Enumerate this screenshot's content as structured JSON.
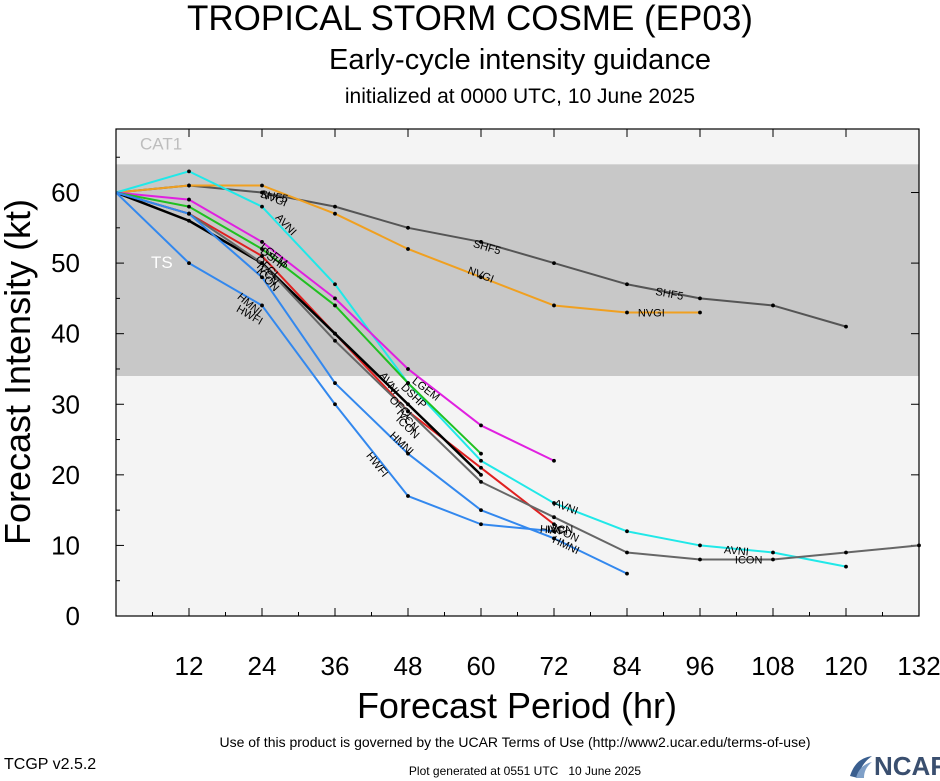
{
  "chart_data": {
    "type": "line",
    "title": "TROPICAL STORM COSME (EP03)",
    "subtitle": "Early-cycle intensity guidance",
    "init_text": "initialized at 0000 UTC, 10 June 2025",
    "xlabel": "Forecast Period (hr)",
    "ylabel": "Forecast Intensity (kt)",
    "xlim": [
      0,
      132
    ],
    "ylim": [
      0,
      69
    ],
    "xticks": [
      12,
      24,
      36,
      48,
      60,
      72,
      84,
      96,
      108,
      120,
      132
    ],
    "yticks": [
      0,
      10,
      20,
      30,
      40,
      50,
      60
    ],
    "bands": [
      {
        "label": "CAT1",
        "from": 64,
        "to": 69,
        "color": "#f4f4f4"
      },
      {
        "label": "TS",
        "from": 34,
        "to": 64,
        "color": "#c8c8c8"
      },
      {
        "label": "",
        "from": 0,
        "to": 34,
        "color": "#f4f4f4"
      }
    ],
    "series": [
      {
        "name": "SHF5",
        "color": "#555555",
        "x": [
          0,
          12,
          24,
          36,
          48,
          60,
          72,
          84,
          96,
          108,
          120
        ],
        "y": [
          60,
          61,
          60,
          58,
          55,
          53,
          50,
          47,
          45,
          44,
          41
        ],
        "labels": [
          {
            "x": 26,
            "y": 59.5
          },
          {
            "x": 61,
            "y": 52.3
          },
          {
            "x": 91,
            "y": 45.7
          }
        ]
      },
      {
        "name": "NVGI",
        "color": "#f0a020",
        "x": [
          0,
          12,
          24,
          36,
          48,
          60,
          72,
          84,
          96
        ],
        "y": [
          60,
          61,
          61,
          57,
          52,
          48,
          44,
          43,
          43
        ],
        "labels": [
          {
            "x": 26,
            "y": 59.2
          },
          {
            "x": 60,
            "y": 48.4
          },
          {
            "x": 88,
            "y": 43
          }
        ]
      },
      {
        "name": "AVNI",
        "color": "#20e8e8",
        "x": [
          0,
          12,
          24,
          36,
          48,
          60,
          72,
          84,
          96,
          108,
          120
        ],
        "y": [
          60,
          63,
          58,
          47,
          33,
          22,
          16,
          12,
          10,
          9,
          7
        ],
        "labels": [
          {
            "x": 28,
            "y": 55.5
          },
          {
            "x": 45,
            "y": 33
          },
          {
            "x": 74,
            "y": 15.5
          },
          {
            "x": 102,
            "y": 9.3
          }
        ]
      },
      {
        "name": "LGEM",
        "color": "#e020e0",
        "x": [
          0,
          12,
          24,
          36,
          48,
          60,
          72
        ],
        "y": [
          60,
          59,
          53,
          45,
          35,
          27,
          22
        ],
        "labels": [
          {
            "x": 26,
            "y": 51.2
          },
          {
            "x": 51,
            "y": 32.2
          }
        ]
      },
      {
        "name": "DSHP",
        "color": "#20c020",
        "x": [
          0,
          12,
          24,
          36,
          48,
          60
        ],
        "y": [
          60,
          58,
          52,
          44,
          33,
          23
        ],
        "labels": [
          {
            "x": 26,
            "y": 50.6
          },
          {
            "x": 49,
            "y": 31.2
          }
        ]
      },
      {
        "name": "IVCN",
        "color": "#e02020",
        "x": [
          0,
          12,
          24,
          36,
          48,
          60,
          72
        ],
        "y": [
          60,
          57,
          51,
          40,
          29,
          21,
          13
        ],
        "labels": [
          {
            "x": 25,
            "y": 48.5
          },
          {
            "x": 48,
            "y": 27.8
          },
          {
            "x": 73,
            "y": 12.3
          }
        ]
      },
      {
        "name": "OFCL",
        "color": "#000000",
        "x": [
          0,
          12,
          24,
          36,
          48,
          60
        ],
        "y": [
          60,
          56,
          50,
          40,
          30,
          20
        ],
        "labels": [
          {
            "x": 25,
            "y": 49.4
          },
          {
            "x": 47,
            "y": 29.5
          }
        ]
      },
      {
        "name": "ICON",
        "color": "#666666",
        "x": [
          0,
          12,
          24,
          36,
          48,
          60,
          72,
          84,
          96,
          108,
          120,
          132
        ],
        "y": [
          60,
          57,
          50,
          39,
          29,
          19,
          14,
          9,
          8,
          8,
          9,
          10
        ],
        "labels": [
          {
            "x": 25,
            "y": 47.7
          },
          {
            "x": 48,
            "y": 26.8
          },
          {
            "x": 74,
            "y": 11.8
          },
          {
            "x": 104,
            "y": 8
          }
        ]
      },
      {
        "name": "HMNI",
        "color": "#3388ee",
        "x": [
          0,
          12,
          24,
          36,
          48,
          60,
          72,
          84
        ],
        "y": [
          60,
          57,
          48,
          33,
          23,
          15,
          11,
          6
        ],
        "labels": [
          {
            "x": 22,
            "y": 44.2
          },
          {
            "x": 47,
            "y": 24.5
          },
          {
            "x": 74,
            "y": 10.1
          }
        ]
      },
      {
        "name": "HWFI",
        "color": "#3388ee",
        "x": [
          0,
          12,
          24,
          36,
          48,
          60,
          72
        ],
        "y": [
          60,
          50,
          44,
          30,
          17,
          13,
          12
        ],
        "labels": [
          {
            "x": 22,
            "y": 42.7
          },
          {
            "x": 43,
            "y": 21.5
          },
          {
            "x": 72,
            "y": 12.2
          }
        ]
      }
    ]
  },
  "footer": {
    "version": "TCGP v2.5.2",
    "terms": "Use of this product is governed by the UCAR Terms of Use (http://www2.ucar.edu/terms-of-use)",
    "generated": "Plot generated at 0551 UTC   10 June 2025",
    "logo_text": "NCAR"
  }
}
